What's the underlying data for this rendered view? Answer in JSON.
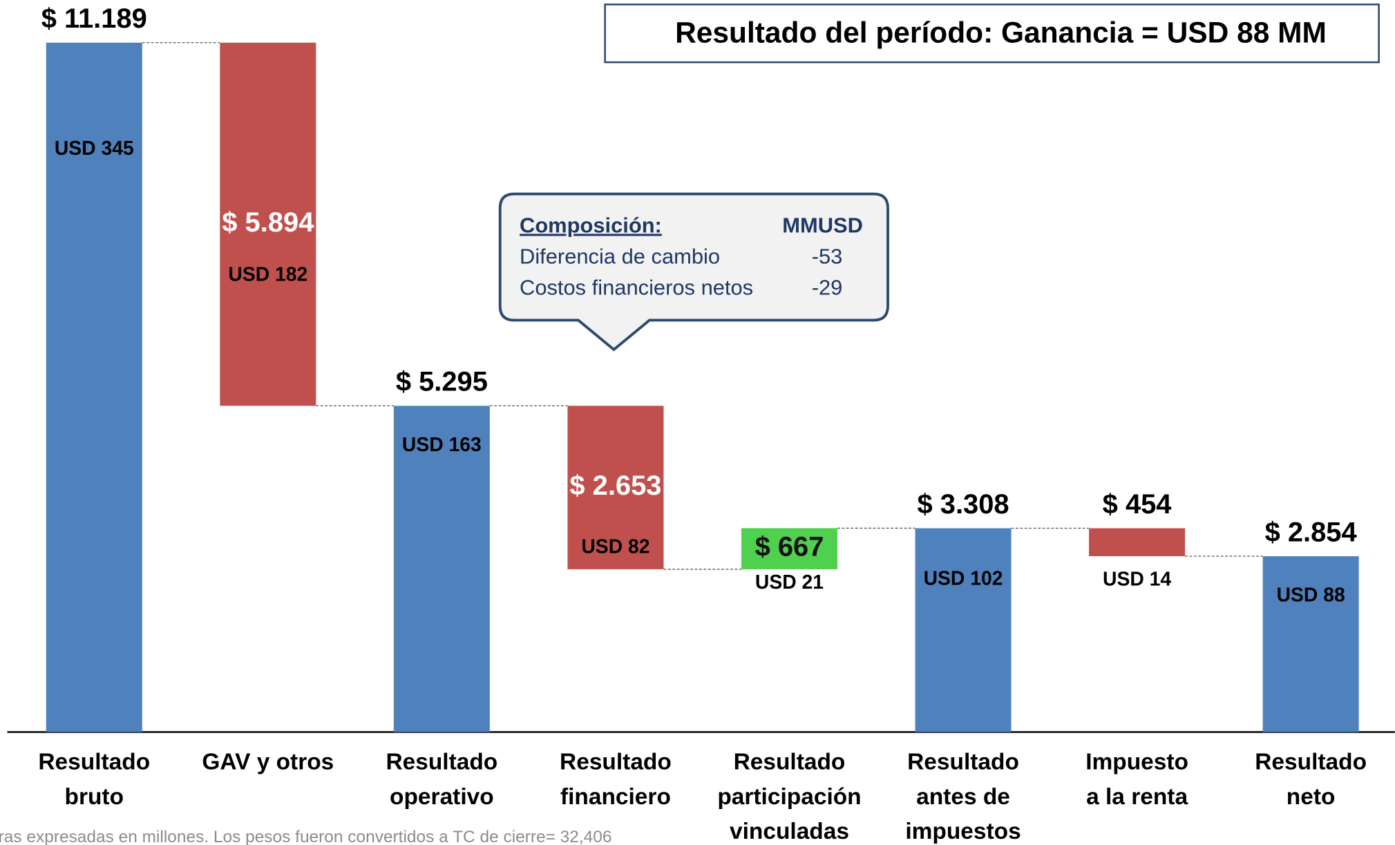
{
  "chart_data": {
    "type": "waterfall",
    "title": "Resultado del período: Ganancia = USD 88 MM",
    "categories": [
      [
        "Resultado",
        "bruto"
      ],
      [
        "GAV y otros"
      ],
      [
        "Resultado",
        "operativo"
      ],
      [
        "Resultado",
        "financiero"
      ],
      [
        "Resultado",
        "participación",
        "vinculadas"
      ],
      [
        "Resultado",
        "antes de",
        "impuestos"
      ],
      [
        "Impuesto",
        "a la renta"
      ],
      [
        "Resultado",
        "neto"
      ]
    ],
    "values": [
      11189,
      5894,
      5295,
      2653,
      667,
      3308,
      454,
      2854
    ],
    "value_labels": [
      "$ 11.189",
      "$ 5.894",
      "$ 5.295",
      "$ 2.653",
      "$ 667",
      "$ 3.308",
      "$ 454",
      "$ 2.854"
    ],
    "steps": [
      "total",
      "decrease",
      "total",
      "decrease",
      "increase",
      "total",
      "decrease",
      "total"
    ],
    "secondary_labels": [
      "USD 345",
      "USD 182",
      "USD 163",
      "USD 82",
      "USD 21",
      "USD 102",
      "USD 14",
      "USD 88"
    ],
    "colors": {
      "total": "#4f81bd",
      "decrease": "#c0504d",
      "increase": "#4fd04f"
    },
    "ylim": [
      0,
      11189
    ],
    "callout": {
      "heading": "Composición:",
      "unit": "MMUSD",
      "rows": [
        [
          "Diferencia de cambio",
          "-53"
        ],
        [
          "Costos financieros netos",
          "-29"
        ]
      ]
    },
    "footnote": "ras expresadas en millones. Los pesos fueron convertidos a TC de cierre= 32,406"
  }
}
